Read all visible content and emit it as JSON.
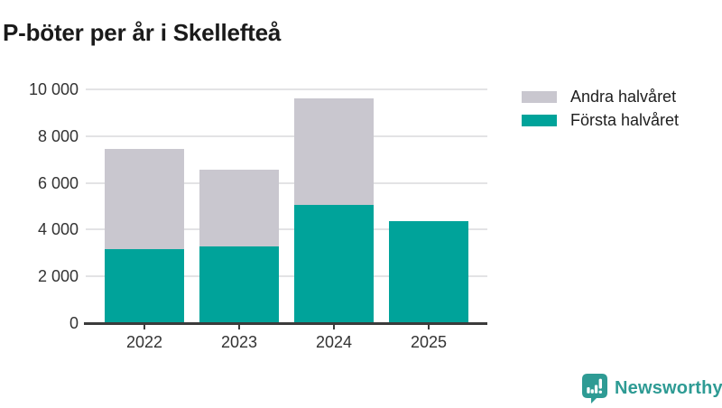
{
  "chart_data": {
    "type": "bar",
    "stacked": true,
    "title": "P-böter per år i Skellefteå",
    "xlabel": "",
    "ylabel": "",
    "categories": [
      "2022",
      "2023",
      "2024",
      "2025"
    ],
    "series": [
      {
        "name": "Första halvåret",
        "color": "#00a39a",
        "values": [
          3160,
          3290,
          5050,
          4380
        ]
      },
      {
        "name": "Andra halvåret",
        "color": "#c9c7cf",
        "values": [
          4290,
          3260,
          4550,
          0
        ]
      }
    ],
    "totals": [
      7450,
      6550,
      9600,
      4380
    ],
    "ylim": [
      0,
      10000
    ],
    "ytick_step": 2000,
    "ytick_labels": [
      "0",
      "2 000",
      "4 000",
      "6 000",
      "8 000",
      "10 000"
    ],
    "grid": true,
    "legend_position": "top-right"
  },
  "legend": {
    "entries": [
      {
        "label": "Andra halvåret",
        "color": "#c9c7cf"
      },
      {
        "label": "Första halvåret",
        "color": "#00a39a"
      }
    ]
  },
  "branding": {
    "label": "Newsworthy",
    "logo_icon": "bar-chart-speech-bubble-icon",
    "color": "#2e9b94"
  },
  "colors": {
    "first_half_bar": "#00a39a",
    "second_half_bar": "#c9c7cf",
    "gridline": "#e3e3e5",
    "axis": "#3b3b3b",
    "title_text": "#1a1a1a",
    "axis_text": "#333333"
  }
}
